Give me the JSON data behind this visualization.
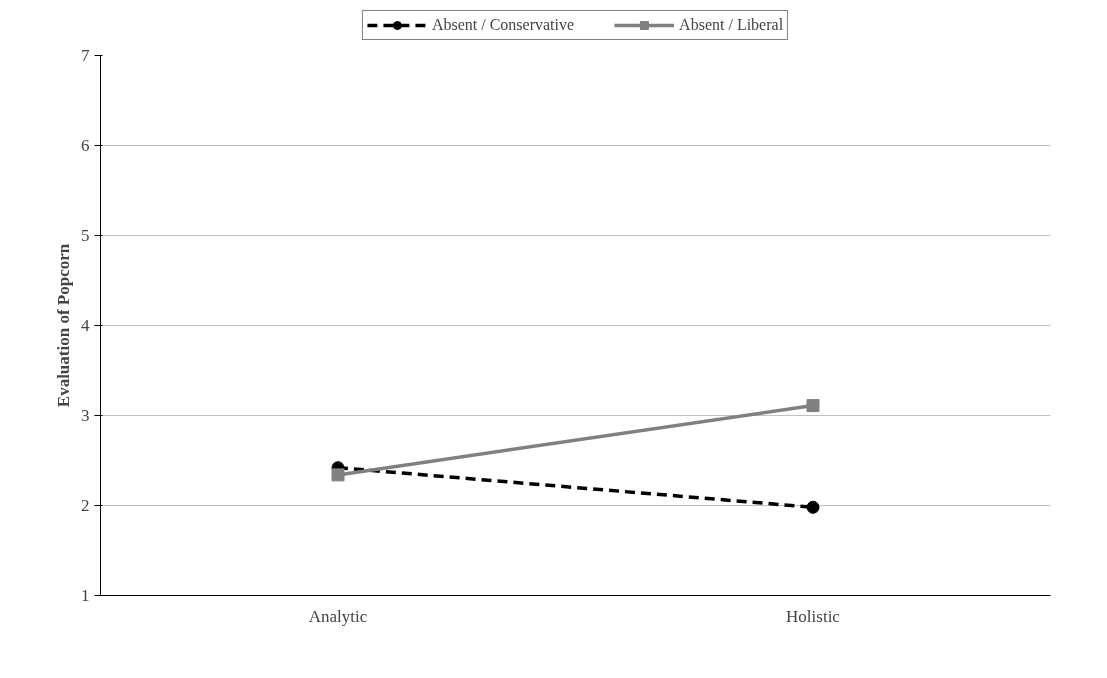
{
  "chart_data": {
    "type": "line",
    "ylabel": "Evaluation of Popcorn",
    "categories": [
      "Analytic",
      "Holistic"
    ],
    "series": [
      {
        "name": "Absent / Conservative",
        "color": "#000000",
        "values": [
          2.42,
          1.98
        ],
        "line_style": "dashed",
        "marker": "circle"
      },
      {
        "name": "Absent / Liberal",
        "color": "#808080",
        "values": [
          2.34,
          3.11
        ],
        "line_style": "solid",
        "marker": "square"
      }
    ],
    "ylim": [
      1,
      7
    ],
    "yticks": [
      1,
      2,
      3,
      4,
      5,
      6,
      7
    ],
    "grid": "y",
    "legend": "top"
  }
}
